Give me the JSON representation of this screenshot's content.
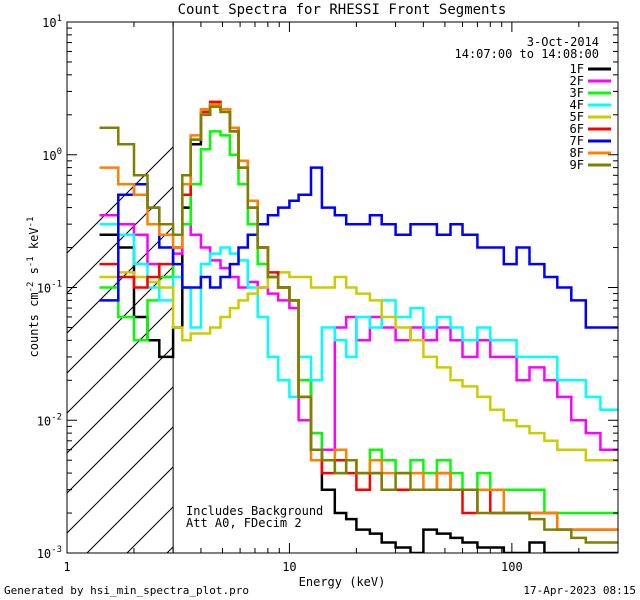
{
  "chart_data": {
    "type": "line",
    "step": true,
    "title": "Count Spectra for RHESSI Front Segments",
    "xlabel": "Energy (keV)",
    "ylabel_parts": [
      "counts cm",
      "-2",
      " s",
      "-1",
      " keV",
      "-1"
    ],
    "xscale": "log",
    "yscale": "log",
    "xlim": [
      1,
      300
    ],
    "ylim": [
      0.001,
      10
    ],
    "x_ticks": [
      {
        "value": 1,
        "label": "1"
      },
      {
        "value": 10,
        "label": "10"
      },
      {
        "value": 100,
        "label": "100"
      }
    ],
    "y_ticks": [
      {
        "value": 0.001,
        "base": "10",
        "exp": "-3"
      },
      {
        "value": 0.01,
        "base": "10",
        "exp": "-2"
      },
      {
        "value": 0.1,
        "base": "10",
        "exp": "-1"
      },
      {
        "value": 1,
        "base": "10",
        "exp": "0"
      },
      {
        "value": 10,
        "base": "10",
        "exp": "1"
      }
    ],
    "hatched_region_kev": [
      1,
      3
    ],
    "date": "3-Oct-2014",
    "time_range": "14:07:00 to 14:08:00",
    "annotations": [
      "Includes Background",
      "Att A0, FDecim 2"
    ],
    "legend_position": "top-right",
    "energy_bins": [
      1.4,
      1.7,
      2.0,
      2.3,
      2.6,
      3.0,
      3.3,
      3.6,
      4.0,
      4.4,
      4.9,
      5.4,
      5.9,
      6.5,
      7.2,
      8.0,
      8.9,
      10,
      11,
      12.5,
      14,
      16,
      18,
      20,
      23,
      26,
      30,
      35,
      40,
      46,
      53,
      60,
      70,
      80,
      92,
      105,
      120,
      140,
      160,
      185,
      215,
      250
    ],
    "series": [
      {
        "name": "1F",
        "color": "#000000",
        "values": [
          0.25,
          0.2,
          0.06,
          0.04,
          0.03,
          0.05,
          0.4,
          1.2,
          2.0,
          2.4,
          2.2,
          1.6,
          0.9,
          0.45,
          0.2,
          0.12,
          0.1,
          0.08,
          0.02,
          0.006,
          0.003,
          0.002,
          0.0018,
          0.0015,
          0.0014,
          0.0012,
          0.0011,
          0.001,
          0.0015,
          0.0014,
          0.0013,
          0.0012,
          0.0011,
          0.0011,
          0.001,
          0.001,
          0.0012,
          0.001,
          0.001,
          0.001,
          0.001,
          0.001
        ]
      },
      {
        "name": "2F",
        "color": "#ff00ff",
        "values": [
          0.35,
          0.3,
          0.25,
          0.15,
          0.12,
          0.18,
          0.3,
          0.25,
          0.2,
          0.16,
          0.14,
          0.12,
          0.1,
          0.11,
          0.1,
          0.09,
          0.08,
          0.07,
          0.01,
          0.008,
          0.006,
          0.05,
          0.06,
          0.04,
          0.06,
          0.05,
          0.04,
          0.05,
          0.04,
          0.05,
          0.04,
          0.03,
          0.04,
          0.03,
          0.03,
          0.02,
          0.025,
          0.02,
          0.015,
          0.01,
          0.008,
          0.006
        ]
      },
      {
        "name": "3F",
        "color": "#00ff00",
        "values": [
          0.1,
          0.06,
          0.04,
          0.08,
          0.12,
          0.2,
          0.3,
          0.6,
          1.1,
          1.5,
          1.4,
          1.0,
          0.6,
          0.3,
          0.15,
          0.12,
          0.1,
          0.08,
          0.02,
          0.008,
          0.005,
          0.004,
          0.005,
          0.004,
          0.006,
          0.005,
          0.004,
          0.005,
          0.004,
          0.005,
          0.004,
          0.003,
          0.004,
          0.003,
          0.003,
          0.003,
          0.003,
          0.002,
          0.002,
          0.002,
          0.002,
          0.002
        ]
      },
      {
        "name": "4F",
        "color": "#00ffff",
        "values": [
          0.3,
          0.25,
          0.15,
          0.1,
          0.08,
          0.12,
          0.1,
          0.05,
          0.15,
          0.18,
          0.2,
          0.18,
          0.16,
          0.1,
          0.06,
          0.03,
          0.02,
          0.015,
          0.03,
          0.02,
          0.05,
          0.04,
          0.03,
          0.06,
          0.05,
          0.08,
          0.06,
          0.07,
          0.05,
          0.06,
          0.05,
          0.04,
          0.05,
          0.04,
          0.04,
          0.03,
          0.03,
          0.03,
          0.02,
          0.02,
          0.015,
          0.012
        ]
      },
      {
        "name": "5F",
        "color": "#cccc00",
        "values": [
          0.12,
          0.13,
          0.12,
          0.11,
          0.1,
          0.05,
          0.04,
          0.045,
          0.045,
          0.05,
          0.06,
          0.07,
          0.08,
          0.09,
          0.1,
          0.12,
          0.13,
          0.12,
          0.12,
          0.1,
          0.1,
          0.12,
          0.1,
          0.09,
          0.08,
          0.06,
          0.05,
          0.04,
          0.03,
          0.025,
          0.02,
          0.018,
          0.015,
          0.012,
          0.01,
          0.009,
          0.008,
          0.007,
          0.006,
          0.006,
          0.005,
          0.005
        ]
      },
      {
        "name": "6F",
        "color": "#ff0000",
        "values": [
          0.15,
          0.12,
          0.1,
          0.12,
          0.15,
          0.2,
          0.5,
          1.3,
          2.1,
          2.5,
          2.2,
          1.5,
          0.8,
          0.4,
          0.2,
          0.13,
          0.1,
          0.08,
          0.015,
          0.006,
          0.004,
          0.005,
          0.004,
          0.003,
          0.004,
          0.003,
          0.003,
          0.003,
          0.003,
          0.004,
          0.003,
          0.002,
          0.003,
          0.002,
          0.002,
          0.002,
          0.002,
          0.002,
          0.0015,
          0.0015,
          0.0015,
          0.0015
        ]
      },
      {
        "name": "7F",
        "color": "#0000ff",
        "values": [
          0.08,
          0.5,
          0.6,
          0.4,
          0.2,
          0.15,
          0.1,
          0.1,
          0.12,
          0.1,
          0.12,
          0.15,
          0.2,
          0.25,
          0.3,
          0.35,
          0.4,
          0.45,
          0.5,
          0.8,
          0.4,
          0.35,
          0.3,
          0.3,
          0.35,
          0.3,
          0.25,
          0.3,
          0.3,
          0.25,
          0.3,
          0.25,
          0.2,
          0.2,
          0.15,
          0.2,
          0.15,
          0.12,
          0.1,
          0.08,
          0.05,
          0.05
        ]
      },
      {
        "name": "8F",
        "color": "#ff8000",
        "values": [
          0.8,
          0.6,
          0.5,
          0.3,
          0.25,
          0.2,
          0.6,
          1.4,
          2.2,
          2.4,
          2.2,
          1.6,
          0.9,
          0.45,
          0.2,
          0.12,
          0.1,
          0.08,
          0.015,
          0.005,
          0.005,
          0.006,
          0.005,
          0.004,
          0.005,
          0.004,
          0.004,
          0.004,
          0.003,
          0.004,
          0.003,
          0.003,
          0.003,
          0.003,
          0.002,
          0.002,
          0.002,
          0.002,
          0.0015,
          0.0015,
          0.0015,
          0.0015
        ]
      },
      {
        "name": "9F",
        "color": "#808000",
        "values": [
          1.6,
          1.2,
          0.7,
          0.4,
          0.3,
          0.25,
          0.7,
          1.3,
          2.0,
          2.3,
          2.1,
          1.5,
          0.8,
          0.4,
          0.2,
          0.12,
          0.1,
          0.08,
          0.015,
          0.006,
          0.005,
          0.004,
          0.005,
          0.004,
          0.004,
          0.003,
          0.004,
          0.003,
          0.003,
          0.003,
          0.003,
          0.003,
          0.002,
          0.002,
          0.002,
          0.002,
          0.0018,
          0.0015,
          0.0015,
          0.0013,
          0.0012,
          0.0012
        ]
      }
    ]
  },
  "footer": {
    "generated_by": "Generated by hsi_min_spectra_plot.pro",
    "timestamp": "17-Apr-2023 08:15"
  }
}
